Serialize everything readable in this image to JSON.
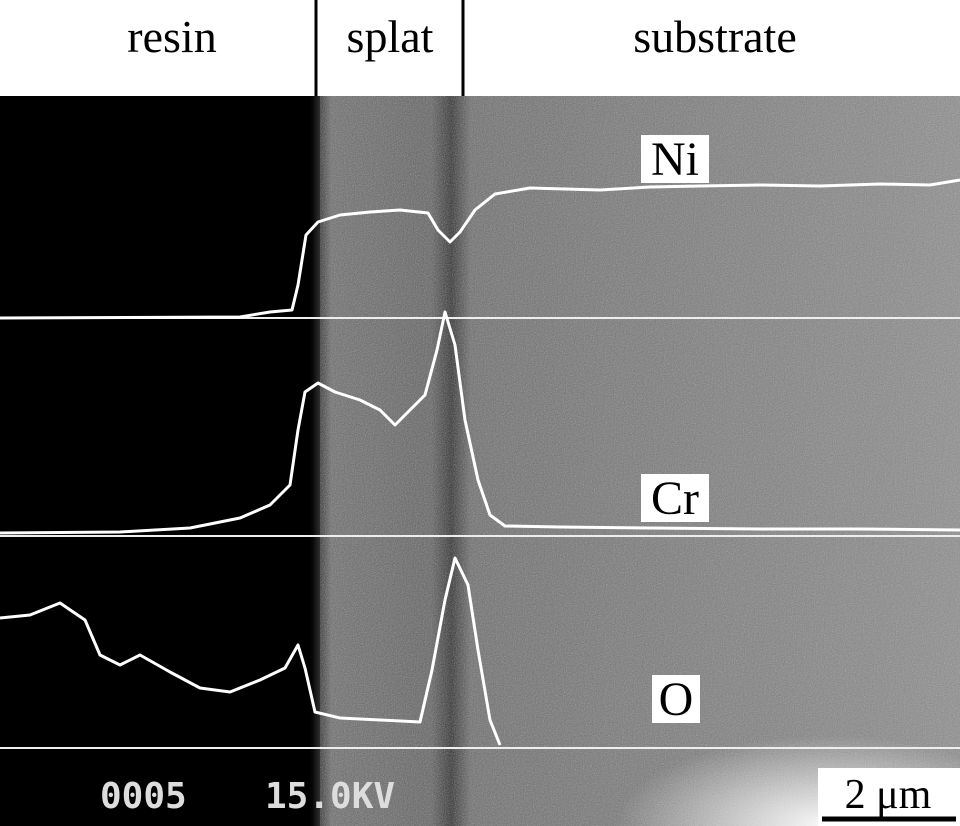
{
  "header": {
    "labels": [
      "resin",
      "splat",
      "substrate"
    ]
  },
  "traces": {
    "labels": [
      "Ni",
      "Cr",
      "O"
    ]
  },
  "footer": {
    "counter": "0005",
    "voltage": "15.0KV",
    "scale": "2 μm"
  }
}
